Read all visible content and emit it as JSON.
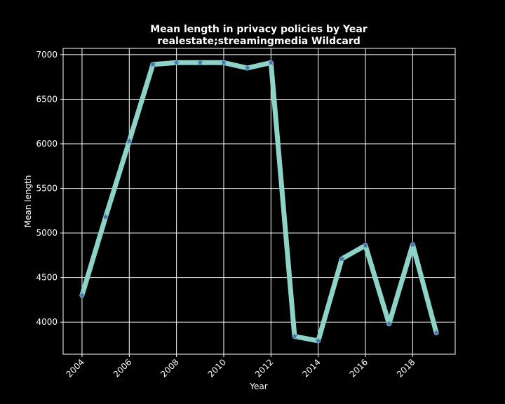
{
  "chart_data": {
    "type": "line",
    "title": "Mean length in privacy policies by Year",
    "subtitle": "realestate;streamingmedia Wildcard",
    "xlabel": "Year",
    "ylabel": "Mean length",
    "x": [
      2004,
      2005,
      2006,
      2007,
      2008,
      2009,
      2010,
      2011,
      2012,
      2013,
      2014,
      2015,
      2016,
      2017,
      2018,
      2019
    ],
    "series": [
      {
        "values": [
          4300,
          5180,
          6030,
          6890,
          6910,
          6910,
          6910,
          6850,
          6910,
          3840,
          3790,
          4710,
          4860,
          3980,
          4870,
          3880
        ]
      }
    ],
    "xlim": [
      2003.2,
      2019.8
    ],
    "ylim": [
      3640,
      7070
    ],
    "xticks": [
      2004,
      2006,
      2008,
      2010,
      2012,
      2014,
      2016,
      2018
    ],
    "yticks": [
      4000,
      4500,
      5000,
      5500,
      6000,
      6500,
      7000
    ],
    "grid": true,
    "legend": "none",
    "colors": {
      "background": "#000000",
      "line": "#8dd3c7",
      "marker": "#4c72b0",
      "text": "#ffffff",
      "grid": "#ffffff"
    }
  }
}
